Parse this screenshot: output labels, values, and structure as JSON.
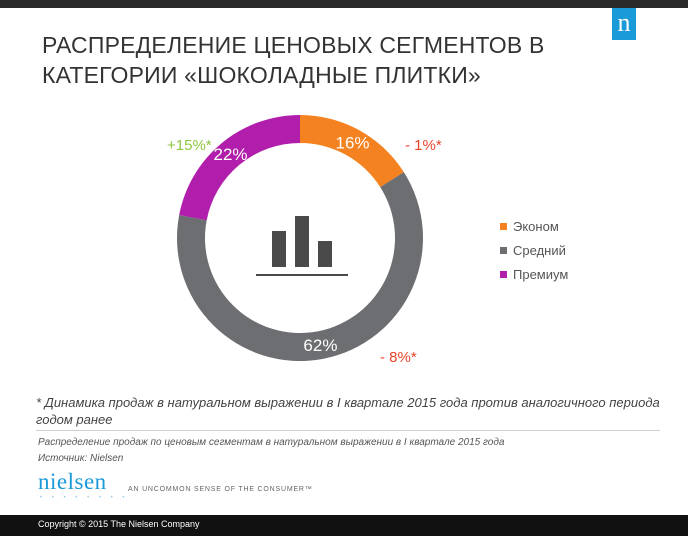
{
  "title": {
    "line1": "РАСПРЕДЕЛЕНИЕ ЦЕНОВЫХ СЕГМЕНТОВ В",
    "line2": "КАТЕГОРИИ «ШОКОЛАДНЫЕ ПЛИТКИ»"
  },
  "chart_data": {
    "type": "pie",
    "style": "donut",
    "series": [
      {
        "name": "Эконом",
        "value": 16,
        "label": "16%",
        "change": "- 1%*",
        "change_color": "#e8452c",
        "color": "#f58220"
      },
      {
        "name": "Средний",
        "value": 62,
        "label": "62%",
        "change": "- 8%*",
        "change_color": "#e8452c",
        "color": "#6d6e71"
      },
      {
        "name": "Премиум",
        "value": 22,
        "label": "22%",
        "change": "+15%*",
        "change_color": "#8dc63f",
        "color": "#b01eab"
      }
    ],
    "legend_position": "right",
    "center_icon": "bar-chart-icon"
  },
  "footnote": "* Динамика продаж в натуральном выражении в I квартале 2015 года против аналогичного периода годом ранее",
  "source": {
    "line1": "Распределение продаж по ценовым сегментам в натуральном выражении в I квартале 2015 года",
    "line2": "Источник: Nielsen"
  },
  "brand": {
    "logo_text": "nielsen",
    "tagline": "AN UNCOMMON SENSE OF THE CONSUMER™",
    "corner_logo": "n",
    "accent_color": "#1a9ad9"
  },
  "copyright": "Copyright © 2015 The Nielsen Company"
}
